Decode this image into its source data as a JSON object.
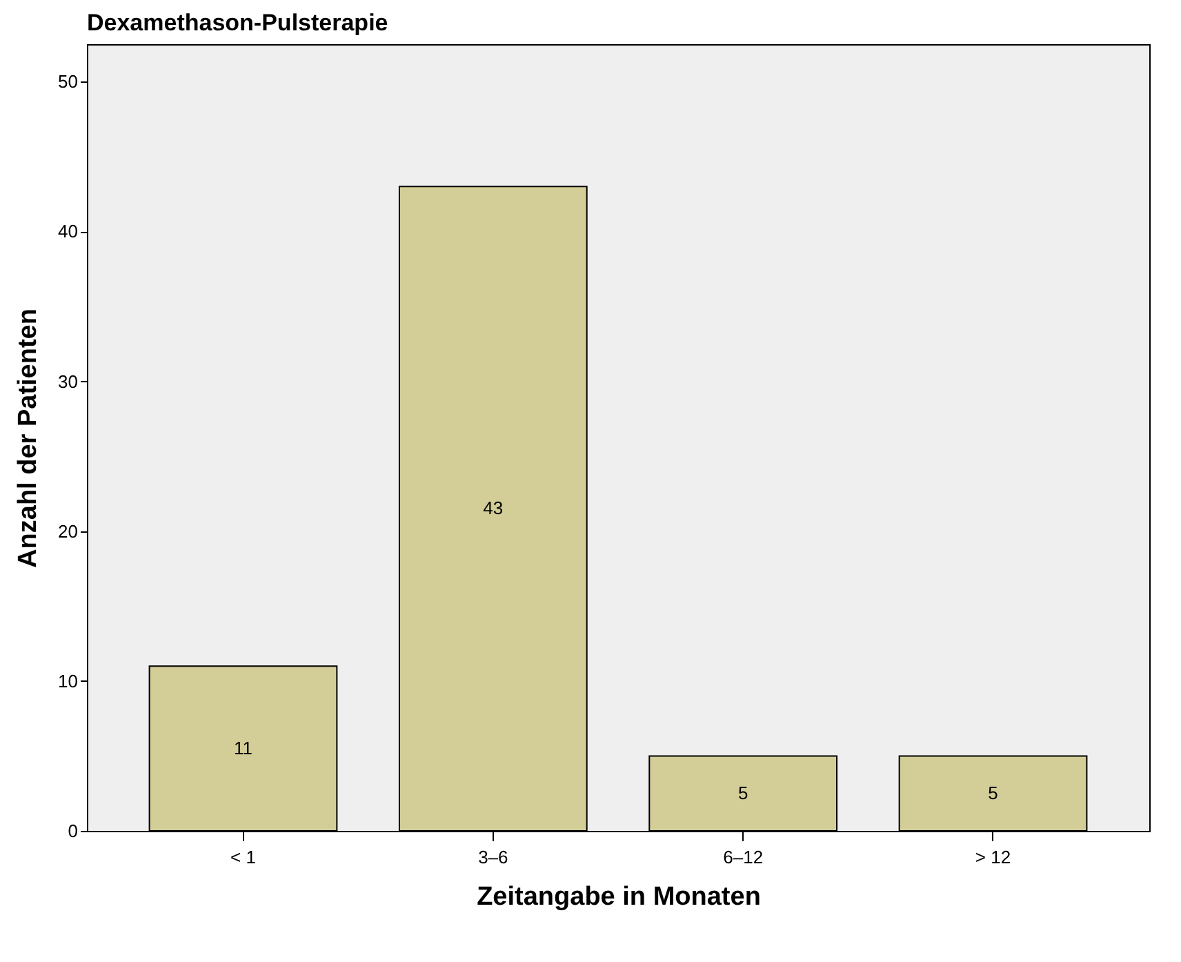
{
  "chart_data": {
    "type": "bar",
    "title": "Dexamethason-Pulsterapie",
    "xlabel": "Zeitangabe in Monaten",
    "ylabel": "Anzahl der Patienten",
    "categories": [
      "< 1",
      "3–6",
      "6–12",
      "> 12"
    ],
    "values": [
      11,
      43,
      5,
      5
    ],
    "color": "#d3ce97",
    "ylim": [
      0,
      52.5
    ],
    "yticks": [
      0,
      10,
      20,
      30,
      40,
      50
    ],
    "grid": false,
    "data_labels": true
  }
}
